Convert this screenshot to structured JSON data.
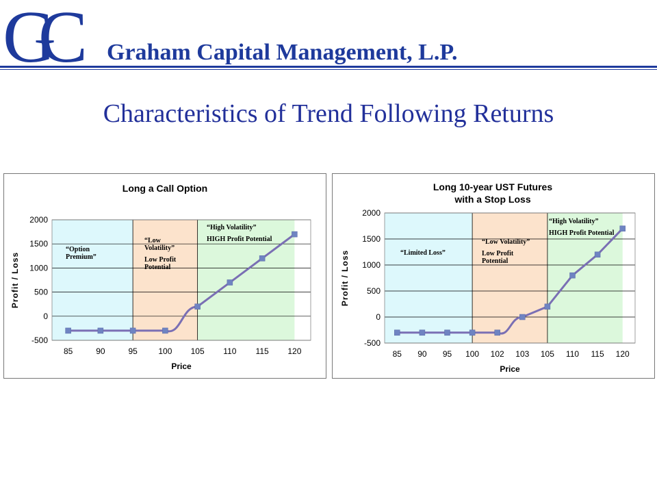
{
  "header": {
    "company": "Graham Capital Management, L.P.",
    "logo_letters": "GC",
    "brand_color": "#1e3a9c"
  },
  "slide": {
    "title": "Characteristics of Trend Following Returns"
  },
  "chart_data": [
    {
      "type": "line",
      "title": "Long a Call Option",
      "xlabel": "Price",
      "ylabel": "Profit / Loss",
      "categories": [
        "85",
        "90",
        "95",
        "100",
        "105",
        "110",
        "115",
        "120"
      ],
      "series": [
        {
          "values": [
            -300,
            -300,
            -300,
            -300,
            200,
            700,
            1200,
            1700
          ]
        }
      ],
      "ylim": [
        -500,
        2000
      ],
      "yticks": [
        -500,
        0,
        500,
        1000,
        1500,
        2000
      ],
      "grid": true,
      "regions": [
        {
          "from": 0,
          "to": 2,
          "color": "#ddf8fc",
          "notes": [
            "“Option",
            "Premium”"
          ]
        },
        {
          "from": 2,
          "to": 4,
          "color": "#fce3cc",
          "notes": [
            "“Low",
            "Volatility”",
            "Low Profit",
            "Potential"
          ]
        },
        {
          "from": 4,
          "to": 7,
          "color": "#dcf8dc",
          "notes": [
            "“High Volatility”",
            "HIGH Profit  Potential"
          ]
        }
      ],
      "line_color": "#7a6fb4",
      "marker_color": "#6f84c2"
    },
    {
      "type": "line",
      "title": [
        "Long 10-year UST Futures",
        "with a Stop Loss"
      ],
      "xlabel": "Price",
      "ylabel": "Profit / Loss",
      "categories": [
        "85",
        "90",
        "95",
        "100",
        "102",
        "103",
        "105",
        "110",
        "115",
        "120"
      ],
      "series": [
        {
          "values": [
            -300,
            -300,
            -300,
            -300,
            -300,
            0,
            200,
            800,
            1200,
            1700
          ]
        }
      ],
      "ylim": [
        -500,
        2000
      ],
      "yticks": [
        -500,
        0,
        500,
        1000,
        1500,
        2000
      ],
      "grid": true,
      "regions": [
        {
          "from": 0,
          "to": 3,
          "color": "#ddf8fc",
          "notes": [
            "“Limited Loss”"
          ]
        },
        {
          "from": 3,
          "to": 6,
          "color": "#fce3cc",
          "notes": [
            "“Low Volatility”",
            "Low Profit",
            "Potential"
          ]
        },
        {
          "from": 6,
          "to": 9,
          "color": "#dcf8dc",
          "notes": [
            "“High Volatility”",
            "HIGH Profit  Potential"
          ]
        }
      ],
      "line_color": "#7a6fb4",
      "marker_color": "#6f84c2"
    }
  ]
}
